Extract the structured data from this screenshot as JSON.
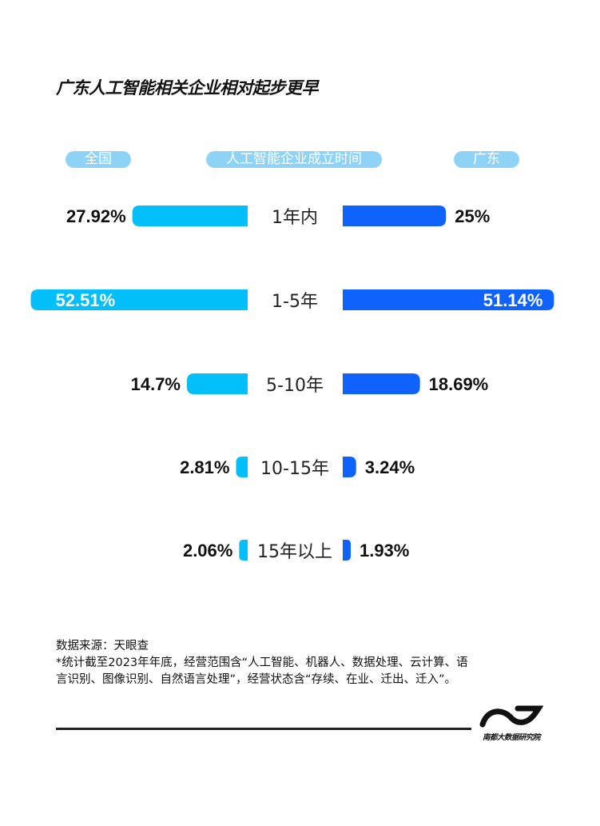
{
  "title": "广东人工智能相关企业相对起步更早",
  "headers": {
    "left": "全国",
    "center": "人工智能企业成立时间",
    "right": "广东"
  },
  "colors": {
    "left": "#03bff9",
    "right": "#0f62fb",
    "pill": "#8ed3f6"
  },
  "chart_data": {
    "type": "bar",
    "orientation": "butterfly",
    "categories": [
      "1年内",
      "1-5年",
      "5-10年",
      "10-15年",
      "15年以上"
    ],
    "series": [
      {
        "name": "全国",
        "values": [
          27.92,
          52.51,
          14.7,
          2.81,
          2.06
        ],
        "labels": [
          "27.92%",
          "52.51%",
          "14.7%",
          "2.81%",
          "2.06%"
        ]
      },
      {
        "name": "广东",
        "values": [
          25,
          51.14,
          18.69,
          3.24,
          1.93
        ],
        "labels": [
          "25%",
          "51.14%",
          "18.69%",
          "3.24%",
          "1.93%"
        ]
      }
    ],
    "xlabel": "",
    "ylabel": "人工智能企业成立时间",
    "ylim": [
      0,
      55
    ]
  },
  "footer": {
    "source": "数据来源：天眼查",
    "note": "*统计截至2023年年底，经营范围含“人工智能、机器人、数据处理、云计算、语言识别、图像识别、自然语言处理”，经营状态含“存续、在业、迁出、迁入”。",
    "logo_text": "南都大数据研究院"
  }
}
